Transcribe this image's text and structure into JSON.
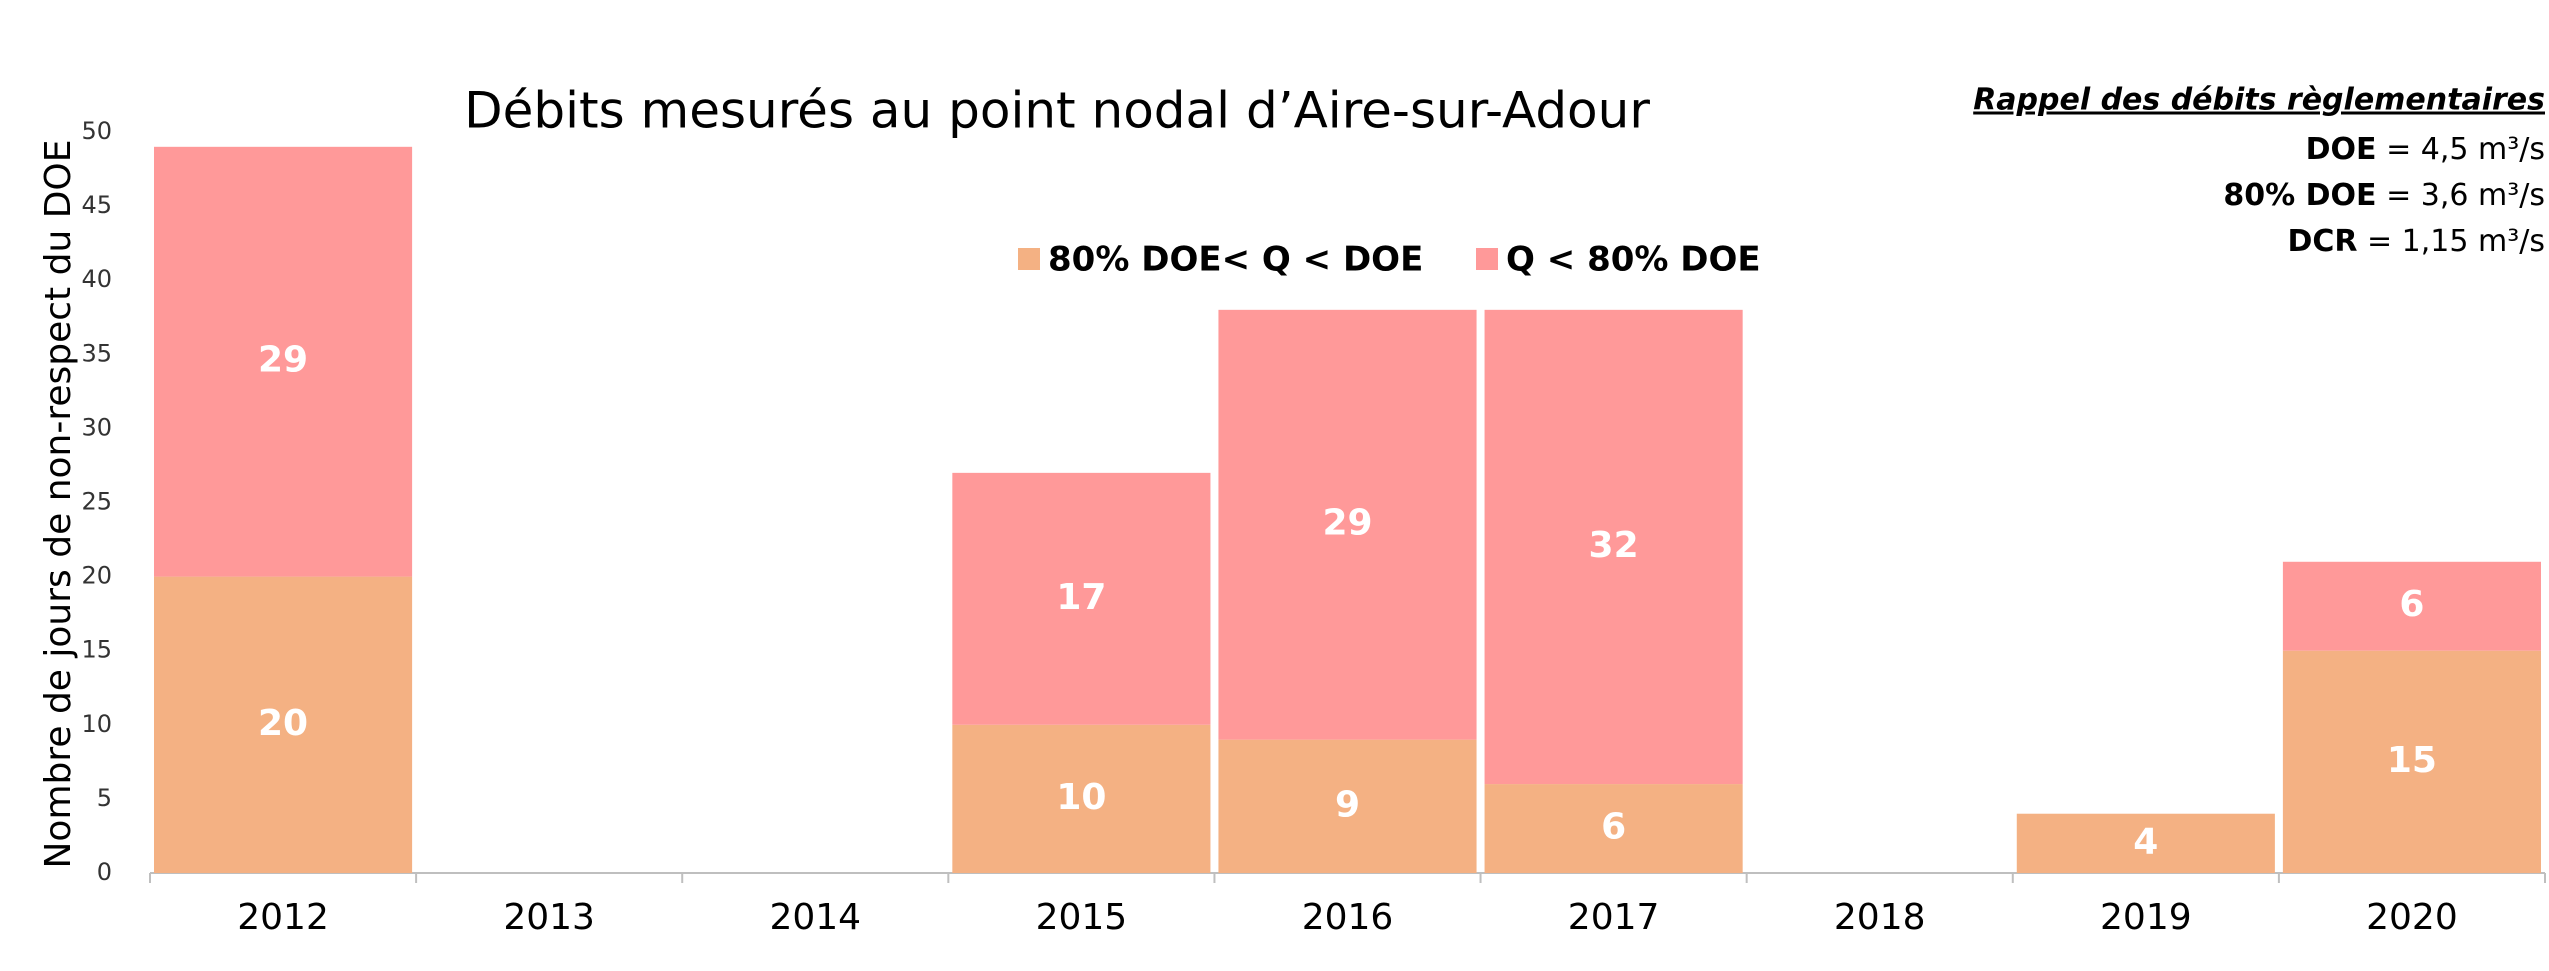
{
  "chart_data": {
    "type": "stacked-bar",
    "title": "Débits mesurés au point nodal d’Aire-sur-Adour",
    "y_label": "Nombre de jours de non-respect du DOE",
    "categories": [
      "2012",
      "2013",
      "2014",
      "2015",
      "2016",
      "2017",
      "2018",
      "2019",
      "2020"
    ],
    "series": [
      {
        "name": "80% DOE< Q < DOE",
        "color": "#f4b183",
        "values": [
          20,
          0,
          0,
          10,
          9,
          6,
          0,
          4,
          15
        ]
      },
      {
        "name": "Q < 80% DOE",
        "color": "#ff9999",
        "values": [
          29,
          0,
          0,
          17,
          29,
          32,
          0,
          0,
          6
        ]
      }
    ],
    "ylim": [
      0,
      50
    ],
    "yticks": [
      0,
      5,
      10,
      15,
      20,
      25,
      30,
      35,
      40,
      45,
      50
    ],
    "note": {
      "title": "Rappel des débits règlementaires",
      "lines": [
        {
          "term": "DOE",
          "text": " = 4,5 m³/s"
        },
        {
          "term": "80% DOE",
          "text": " = 3,6 m³/s"
        },
        {
          "term": "DCR",
          "text": " = 1,15 m³/s"
        }
      ]
    }
  }
}
